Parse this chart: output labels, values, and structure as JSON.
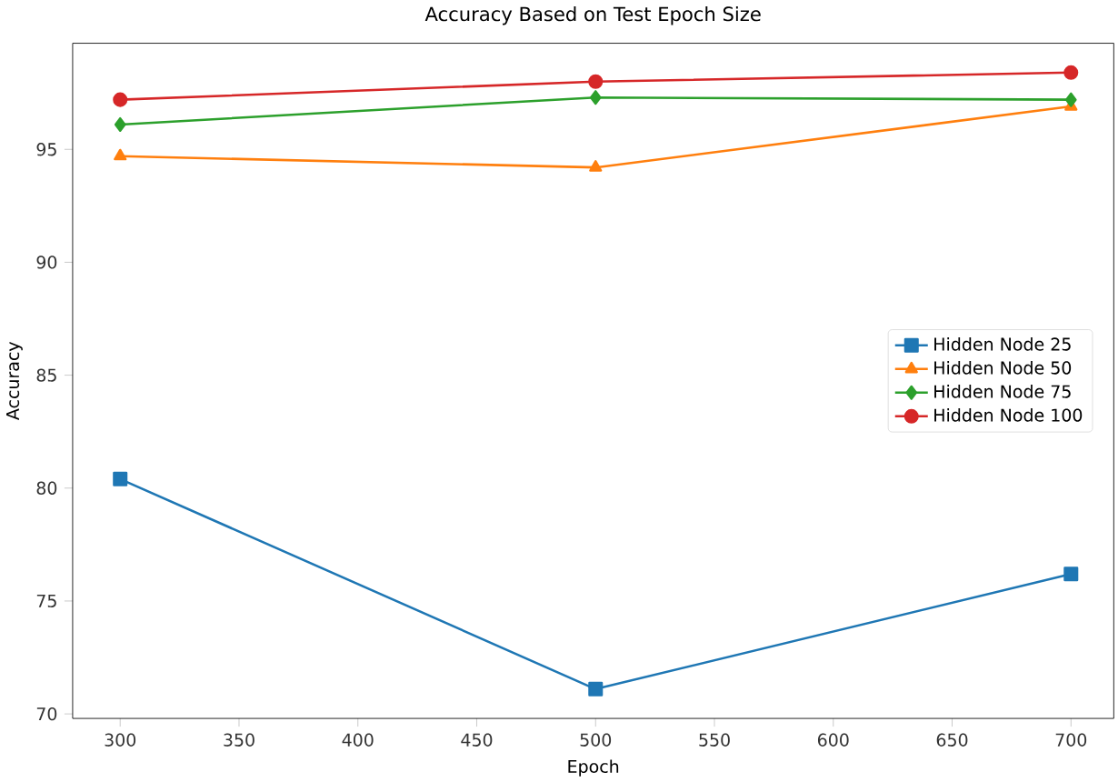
{
  "chart_data": {
    "type": "line",
    "title": "Accuracy Based on Test Epoch Size",
    "xlabel": "Epoch",
    "ylabel": "Accuracy",
    "x": [
      300,
      500,
      700
    ],
    "series": [
      {
        "name": "Hidden Node 25",
        "color": "#1f77b4",
        "marker": "square",
        "values": [
          80.4,
          71.1,
          76.2
        ]
      },
      {
        "name": "Hidden Node 50",
        "color": "#ff7f0e",
        "marker": "triangle",
        "values": [
          94.7,
          94.2,
          96.9
        ]
      },
      {
        "name": "Hidden Node 75",
        "color": "#2ca02c",
        "marker": "diamond",
        "values": [
          96.1,
          97.3,
          97.2
        ]
      },
      {
        "name": "Hidden Node 100",
        "color": "#d62728",
        "marker": "circle",
        "values": [
          97.2,
          98.0,
          98.4
        ]
      }
    ],
    "xlim": [
      280,
      718
    ],
    "ylim": [
      69.8,
      99.7
    ],
    "xticks": [
      300,
      350,
      400,
      450,
      500,
      550,
      600,
      650,
      700
    ],
    "yticks": [
      70,
      75,
      80,
      85,
      90,
      95
    ],
    "grid": false,
    "legend": "right",
    "line_style": "solid"
  }
}
